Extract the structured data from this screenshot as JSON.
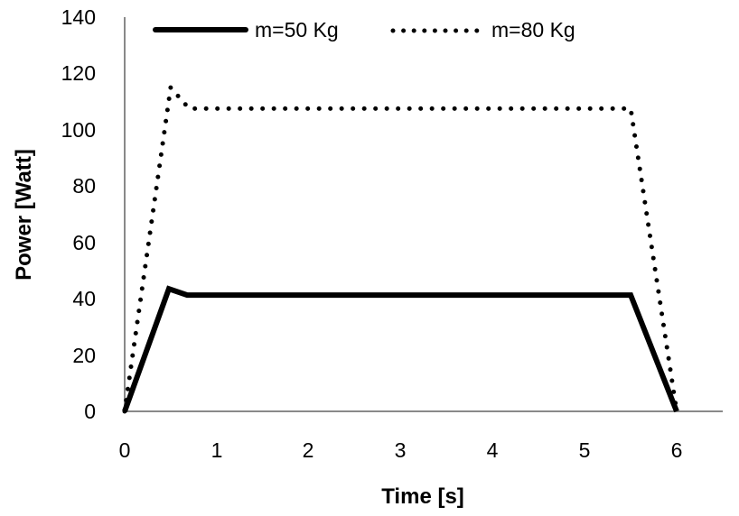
{
  "chart_data": {
    "type": "line",
    "title": "",
    "xlabel": "Time [s]",
    "ylabel": "Power [Watt]",
    "xlim": [
      0,
      6.5
    ],
    "ylim": [
      0,
      140
    ],
    "xticks": [
      0,
      1,
      2,
      3,
      4,
      5,
      6
    ],
    "yticks": [
      0,
      20,
      40,
      60,
      80,
      100,
      120,
      140
    ],
    "grid": false,
    "legend_position": "top",
    "series": [
      {
        "name": "m=50 Kg",
        "style": "solid",
        "color": "#000000",
        "x": [
          0,
          0.48,
          0.68,
          5.5,
          6.0
        ],
        "y": [
          0,
          43.5,
          41.3,
          41.3,
          0
        ]
      },
      {
        "name": "m=80 Kg",
        "style": "dotted",
        "color": "#000000",
        "x": [
          0,
          0.5,
          0.7,
          5.5,
          6.0
        ],
        "y": [
          0,
          115,
          107.5,
          107.5,
          0
        ]
      }
    ]
  },
  "axes": {
    "y_ticks": [
      "0",
      "20",
      "40",
      "60",
      "80",
      "100",
      "120",
      "140"
    ],
    "x_ticks": [
      "0",
      "1",
      "2",
      "3",
      "4",
      "5",
      "6"
    ],
    "x_title": "Time [s]",
    "y_title": "Power [Watt]"
  },
  "legend": {
    "items": [
      {
        "label": "m=50 Kg",
        "style": "solid"
      },
      {
        "label": "m=80 Kg",
        "style": "dotted"
      }
    ]
  },
  "colors": {
    "line": "#000000",
    "axis": "#898989"
  }
}
